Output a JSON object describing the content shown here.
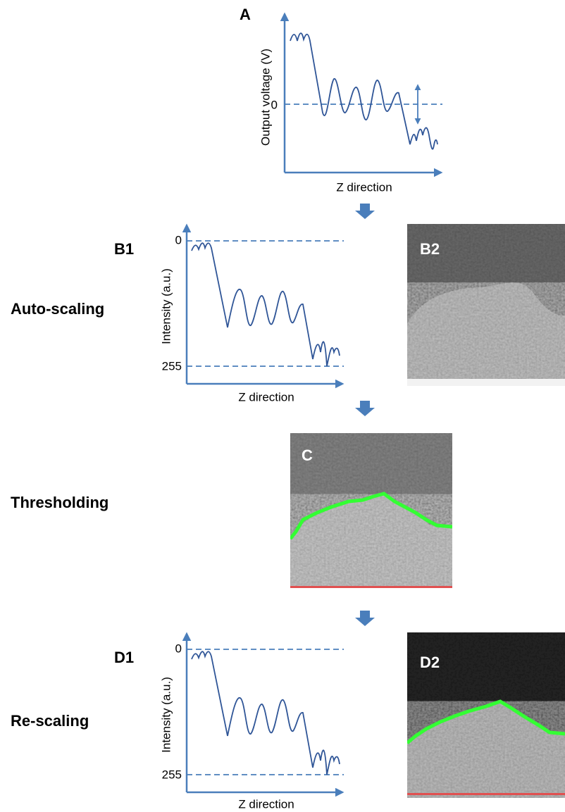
{
  "panels": {
    "a": {
      "label": "A",
      "y_axis": "Output voltage (V)",
      "x_axis": "Z direction",
      "tick": "0"
    },
    "b1": {
      "label": "B1",
      "y_axis": "Intensity (a.u.)",
      "x_axis": "Z direction",
      "ticks": [
        "0",
        "255"
      ]
    },
    "b2": {
      "label": "B2"
    },
    "c": {
      "label": "C"
    },
    "d1": {
      "label": "D1",
      "y_axis": "Intensity (a.u.)",
      "x_axis": "Z direction",
      "ticks": [
        "0",
        "255"
      ]
    },
    "d2": {
      "label": "D2"
    }
  },
  "steps": [
    "Auto-scaling",
    "Thresholding",
    "Re-scaling"
  ]
}
